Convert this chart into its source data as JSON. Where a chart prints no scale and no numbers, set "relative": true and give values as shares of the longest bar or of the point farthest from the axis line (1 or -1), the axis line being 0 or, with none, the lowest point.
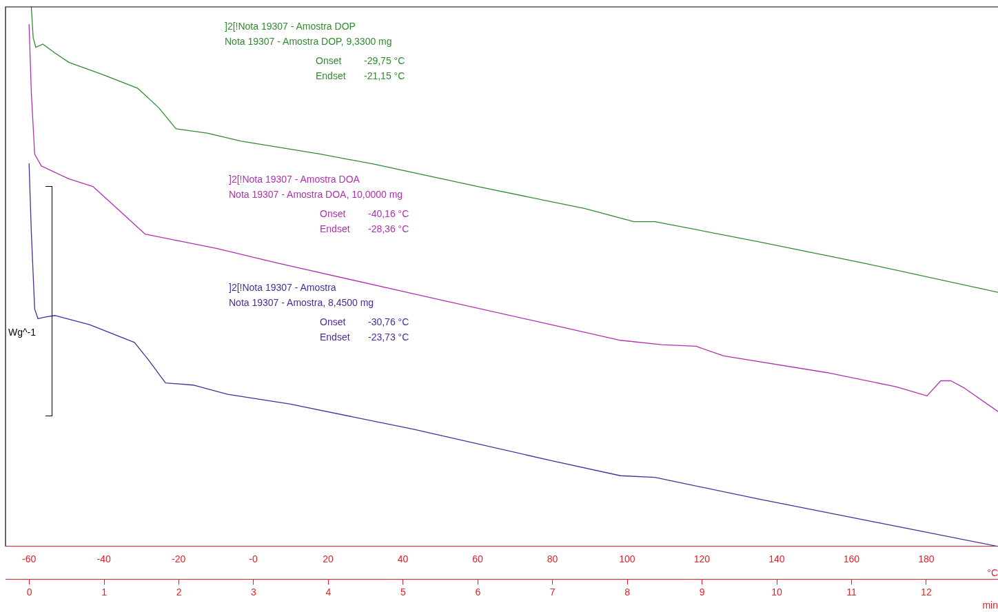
{
  "chart_data": {
    "type": "line",
    "relative": true,
    "ylabel": "Wg^-1",
    "xlabel": "°C",
    "x2label": "min",
    "xlim": [
      -66.3,
      199.2
    ],
    "xticks": [
      -60,
      -40,
      -20,
      {
        "value": 0,
        "label": "-0"
      },
      20,
      40,
      60,
      80,
      100,
      120,
      140,
      160,
      180
    ],
    "x2lim": [
      -0.32,
      12.96
    ],
    "x2ticks": [
      0,
      1,
      2,
      3,
      4,
      5,
      6,
      7,
      8,
      9,
      10,
      11,
      12
    ],
    "grid": false,
    "legend": false,
    "marker": "none",
    "line_style": "solid",
    "series": [
      {
        "name": "]2[!Nota 19307 - Amostra DOP",
        "color": "#2e8b2e",
        "x": [
          -59.4,
          -58.9,
          -58.2,
          -56.3,
          -53.0,
          -49.3,
          -40.1,
          -30.9,
          -25.3,
          -20.7,
          -12.4,
          -3.2,
          18.0,
          32.7,
          61.3,
          88.9,
          101.8,
          107.4,
          135.0,
          162.7,
          199.2
        ],
        "values": [
          1.0,
          0.943,
          0.925,
          0.931,
          0.914,
          0.897,
          0.874,
          0.849,
          0.813,
          0.774,
          0.766,
          0.751,
          0.727,
          0.708,
          0.665,
          0.626,
          0.602,
          0.602,
          0.565,
          0.526,
          0.471
        ]
      },
      {
        "name": "]2[!Nota 19307 - Amostra DOA",
        "color": "#b030b0",
        "x": [
          -60,
          -59.4,
          -58.5,
          -56.7,
          -49.3,
          -42.9,
          -36.4,
          -29.0,
          -19.8,
          -9.7,
          6.0,
          42.9,
          79.7,
          98.2,
          109.2,
          118.4,
          125.8,
          153.5,
          171.9,
          180.2,
          183.9,
          186.6,
          190.3,
          199.2
        ],
        "values": [
          0.968,
          0.842,
          0.727,
          0.705,
          0.681,
          0.667,
          0.626,
          0.579,
          0.566,
          0.552,
          0.526,
          0.468,
          0.411,
          0.382,
          0.374,
          0.371,
          0.353,
          0.322,
          0.296,
          0.279,
          0.307,
          0.307,
          0.293,
          0.25
        ]
      },
      {
        "name": "]2[!Nota 19307 - Amostra",
        "color": "#4b2a9a",
        "x": [
          -60,
          -59.4,
          -58.5,
          -57.6,
          -55.8,
          -53.0,
          -43.8,
          -31.8,
          -28.1,
          -23.5,
          -16.1,
          -6.9,
          9.7,
          42.9,
          79.7,
          98.2,
          107.4,
          135.0,
          166.4,
          199.2
        ],
        "values": [
          0.71,
          0.583,
          0.44,
          0.422,
          0.425,
          0.428,
          0.411,
          0.378,
          0.346,
          0.303,
          0.299,
          0.282,
          0.264,
          0.217,
          0.159,
          0.131,
          0.128,
          0.088,
          0.045,
          0
        ]
      }
    ],
    "annotations": [
      "Nota 19307 - Amostra DOP, 9,3300 mg",
      "Onset     -29,75 °C",
      "Endset    -21,15 °C",
      "Nota 19307 - Amostra DOA, 10,0000 mg",
      "Onset     -40,16 °C",
      "Endset    -28,36 °C",
      "Nota 19307 - Amostra, 8,4500 mg",
      "Onset     -30,76 °C",
      "Endset    -23,73 °C"
    ]
  }
}
